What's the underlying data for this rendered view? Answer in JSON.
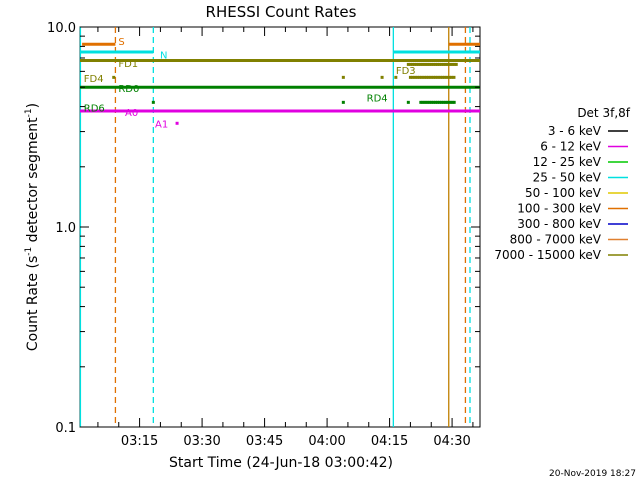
{
  "chart_data": {
    "type": "line",
    "title": "RHESSI Count Rates",
    "xlabel": "Start Time (24-Jun-18 03:00:42)",
    "ylabel_main": "Count Rate (s",
    "ylabel_sup1": "-1",
    "ylabel_mid": " detector segment",
    "ylabel_sup2": "-1",
    "ylabel_end": ")",
    "yscale": "log",
    "ylim": [
      0.1,
      10.0
    ],
    "xlim": [
      "03:00:42",
      "04:36:40"
    ],
    "x_ticks": [
      "03:15",
      "03:30",
      "03:45",
      "04:00",
      "04:15",
      "04:30"
    ],
    "y_ticks": [
      "0.1",
      "1.0",
      "10.0"
    ],
    "footer": "20-Nov-2019 18:27",
    "legend": {
      "title": "Det 3f,8f",
      "placement": "right",
      "entries": [
        {
          "label": "3 - 6 keV",
          "color": "#000000"
        },
        {
          "label": "6 - 12 keV",
          "color": "#e000e0"
        },
        {
          "label": "12 - 25 keV",
          "color": "#00c800"
        },
        {
          "label": "25 - 50 keV",
          "color": "#00e0e0"
        },
        {
          "label": "50 - 100 keV",
          "color": "#e0c800"
        },
        {
          "label": "100 - 300 keV",
          "color": "#e07000"
        },
        {
          "label": "300 - 800 keV",
          "color": "#0000c8"
        },
        {
          "label": "800 - 7000 keV",
          "color": "#e08030"
        },
        {
          "label": "7000 - 15000 keV",
          "color": "#808000"
        }
      ]
    },
    "series": [
      {
        "color": "#00e0e0",
        "segments": [
          [
            [
              0.0,
              7.5
            ],
            [
              17.6,
              7.5
            ]
          ],
          [
            [
              75.2,
              7.5
            ],
            [
              96.0,
              7.5
            ]
          ]
        ]
      },
      {
        "color": "#808000",
        "segments": [
          [
            [
              0.0,
              6.8
            ],
            [
              96.0,
              6.8
            ]
          ]
        ]
      },
      {
        "color": "#008000",
        "segments": [
          [
            [
              0.0,
              5.0
            ],
            [
              96.0,
              5.0
            ]
          ]
        ]
      },
      {
        "color": "#e000e0",
        "segments": [
          [
            [
              0.0,
              3.8
            ],
            [
              96.0,
              3.8
            ]
          ]
        ]
      },
      {
        "color": "#e07000",
        "segments": [
          [
            [
              0.5,
              8.2
            ],
            [
              8.5,
              8.2
            ]
          ],
          [
            [
              88.5,
              8.2
            ],
            [
              96.0,
              8.2
            ]
          ]
        ]
      }
    ],
    "points": [
      {
        "color": "#808000",
        "x": 8.1,
        "y": 5.6
      },
      {
        "color": "#008000",
        "x": 17.6,
        "y": 4.2
      },
      {
        "color": "#008000",
        "x": 63.2,
        "y": 4.2
      },
      {
        "color": "#808000",
        "x": 63.2,
        "y": 5.6
      },
      {
        "color": "#808000",
        "x": 72.5,
        "y": 5.6
      },
      {
        "color": "#808000",
        "x": 75.8,
        "y": 5.6
      },
      {
        "color": "#008000",
        "x": 78.8,
        "y": 4.2
      },
      {
        "color": "#e000e0",
        "x": 23.3,
        "y": 3.3
      }
    ],
    "point_runs": [
      {
        "color": "#808000",
        "x_start": 78.8,
        "x_end": 90.6,
        "y": 6.5,
        "step": 0.5
      },
      {
        "color": "#808000",
        "x_start": 79.3,
        "x_end": 89.8,
        "y": 5.6,
        "step": 0.55
      },
      {
        "color": "#008000",
        "x_start": 81.8,
        "x_end": 89.8,
        "y": 4.2,
        "step": 0.5
      }
    ],
    "vlines": [
      {
        "x": 0.1,
        "color": "#00e0e0",
        "style": "solid"
      },
      {
        "x": 8.5,
        "color": "#e07000",
        "style": "dashed"
      },
      {
        "x": 17.6,
        "color": "#00e0e0",
        "style": "dashed"
      },
      {
        "x": 75.2,
        "color": "#00e0e0",
        "style": "solid"
      },
      {
        "x": 88.5,
        "color": "#c08000",
        "style": "solid"
      },
      {
        "x": 92.5,
        "color": "#e07000",
        "style": "dashed"
      },
      {
        "x": 93.6,
        "color": "#00e0e0",
        "style": "dashed"
      }
    ],
    "annotations": [
      {
        "text": "S",
        "x": 9.2,
        "y": 8.5,
        "color": "#e07000"
      },
      {
        "text": "N",
        "x": 19.2,
        "y": 7.3,
        "color": "#00e0e0"
      },
      {
        "text": "FD1",
        "x": 9.2,
        "y": 6.6,
        "color": "#808000"
      },
      {
        "text": "FD4",
        "x": 0.9,
        "y": 5.55,
        "color": "#808000"
      },
      {
        "text": "RD0",
        "x": 9.2,
        "y": 4.95,
        "color": "#008000"
      },
      {
        "text": "RD6",
        "x": 0.9,
        "y": 3.95,
        "color": "#008000"
      },
      {
        "text": "A0",
        "x": 10.8,
        "y": 3.75,
        "color": "#e000e0"
      },
      {
        "text": "A1",
        "x": 18.0,
        "y": 3.3,
        "color": "#e000e0"
      },
      {
        "text": "FD3",
        "x": 75.8,
        "y": 6.1,
        "color": "#808000"
      },
      {
        "text": "RD4",
        "x": 68.8,
        "y": 4.45,
        "color": "#008000"
      }
    ]
  }
}
